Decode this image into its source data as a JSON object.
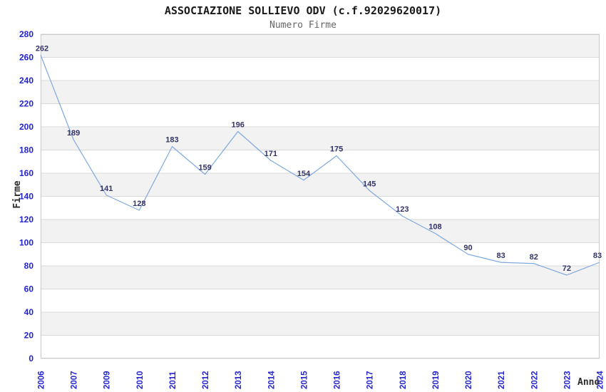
{
  "title": "ASSOCIAZIONE SOLLIEVO ODV (c.f.92029620017)",
  "subtitle": "Numero Firme",
  "chart_data": {
    "type": "line",
    "x": [
      "2006",
      "2007",
      "2009",
      "2010",
      "2011",
      "2012",
      "2013",
      "2014",
      "2015",
      "2016",
      "2017",
      "2018",
      "2019",
      "2020",
      "2021",
      "2022",
      "2023",
      "2024"
    ],
    "values": [
      262,
      189,
      141,
      128,
      183,
      159,
      196,
      171,
      154,
      175,
      145,
      123,
      108,
      90,
      83,
      82,
      72,
      83
    ],
    "title": "ASSOCIAZIONE SOLLIEVO ODV (c.f.92029620017)",
    "subtitle": "Numero Firme",
    "xlabel": "Anno",
    "ylabel": "Firme",
    "ylim": [
      0,
      280
    ],
    "ytick_step": 20,
    "yticks": [
      0,
      20,
      40,
      60,
      80,
      100,
      120,
      140,
      160,
      180,
      200,
      220,
      240,
      260,
      280
    ],
    "grid": true,
    "legend": "none",
    "data_labels": true,
    "colors": {
      "line": "#7fa8dc",
      "tick_label": "#2323cc",
      "data_label": "#333366",
      "band": "#f2f2f2",
      "gridline": "#d9d9d9",
      "border": "#c9c9c9",
      "title": "#1a1a1a",
      "subtitle": "#666666",
      "axis_title": "#2b2b2b",
      "background": "#ffffff"
    }
  }
}
